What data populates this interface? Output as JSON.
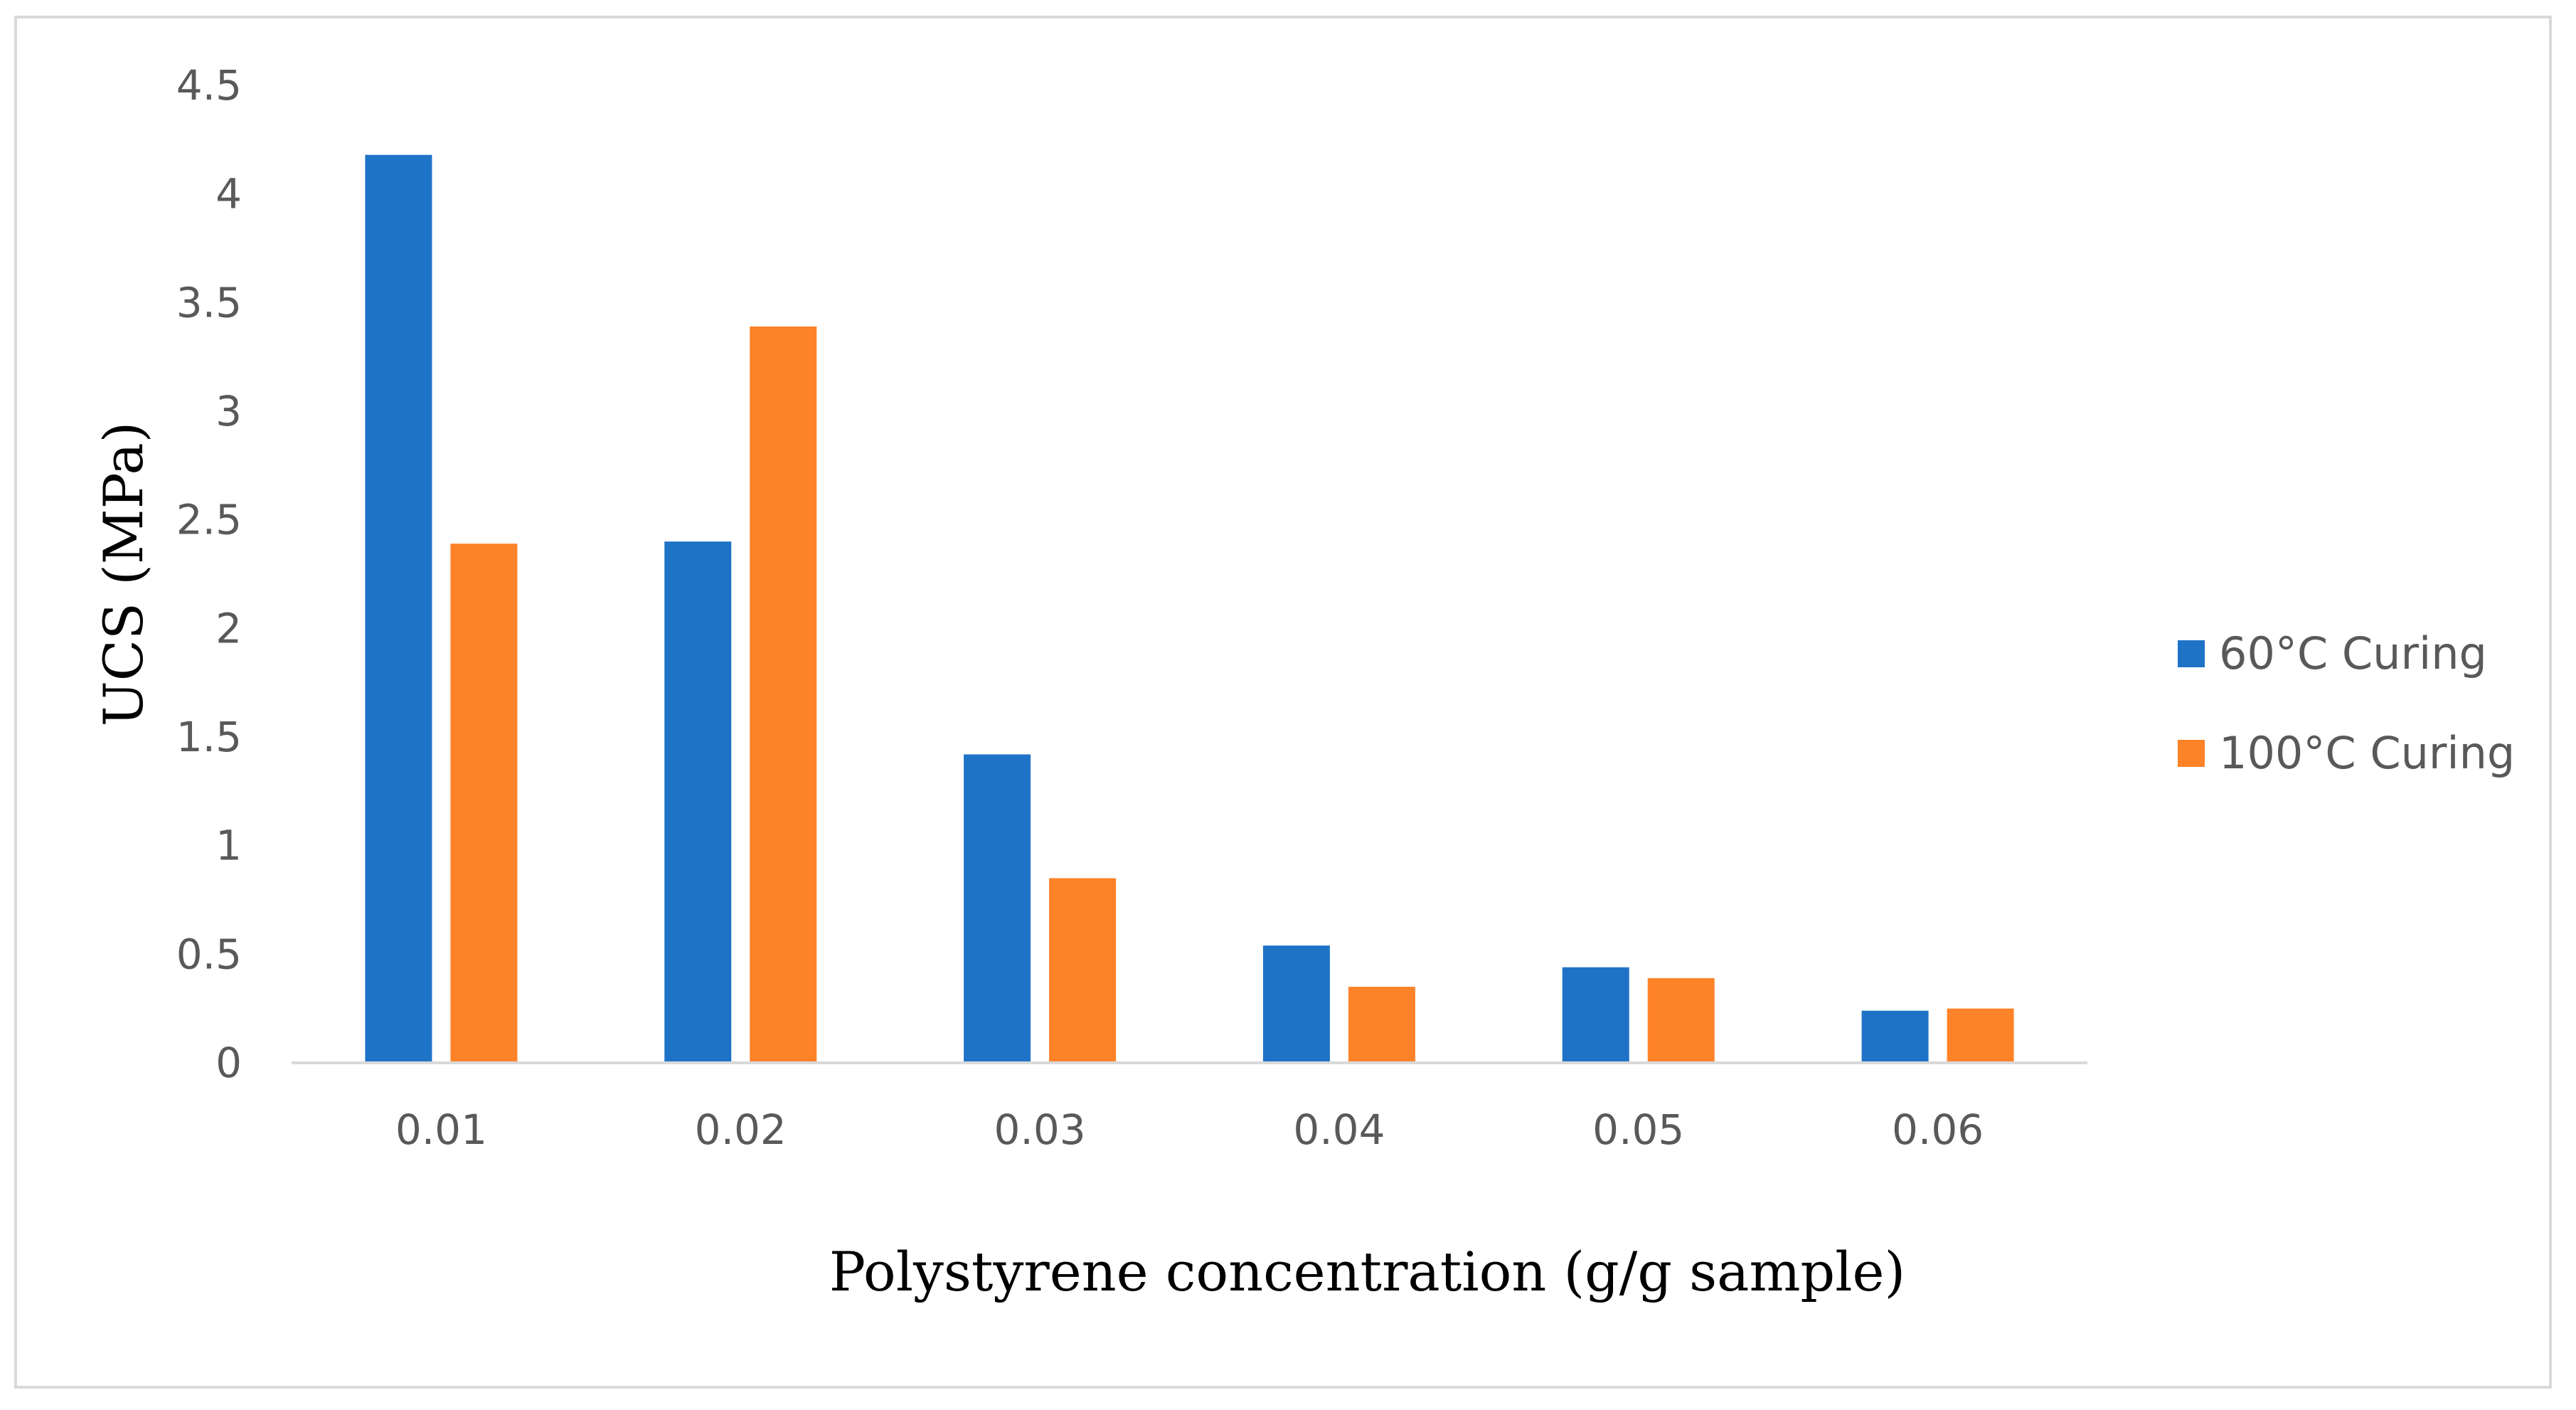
{
  "chart_data": {
    "type": "bar",
    "title": "",
    "xlabel": "Polystyrene concentration (g/g sample)",
    "ylabel": "UCS (MPa)",
    "categories": [
      "0.01",
      "0.02",
      "0.03",
      "0.04",
      "0.05",
      "0.06"
    ],
    "series": [
      {
        "name": "60°C Curing",
        "color": "#1f73c7",
        "values": [
          4.18,
          2.4,
          1.42,
          0.54,
          0.44,
          0.24
        ]
      },
      {
        "name": "100°C Curing",
        "color": "#fd8228",
        "values": [
          2.39,
          3.39,
          0.85,
          0.35,
          0.39,
          0.25
        ]
      }
    ],
    "ylim": [
      0,
      4.5
    ],
    "yticks": [
      "0",
      "0.5",
      "1",
      "1.5",
      "2",
      "2.5",
      "3",
      "3.5",
      "4",
      "4.5"
    ],
    "grid": false,
    "legend_position": "right"
  }
}
